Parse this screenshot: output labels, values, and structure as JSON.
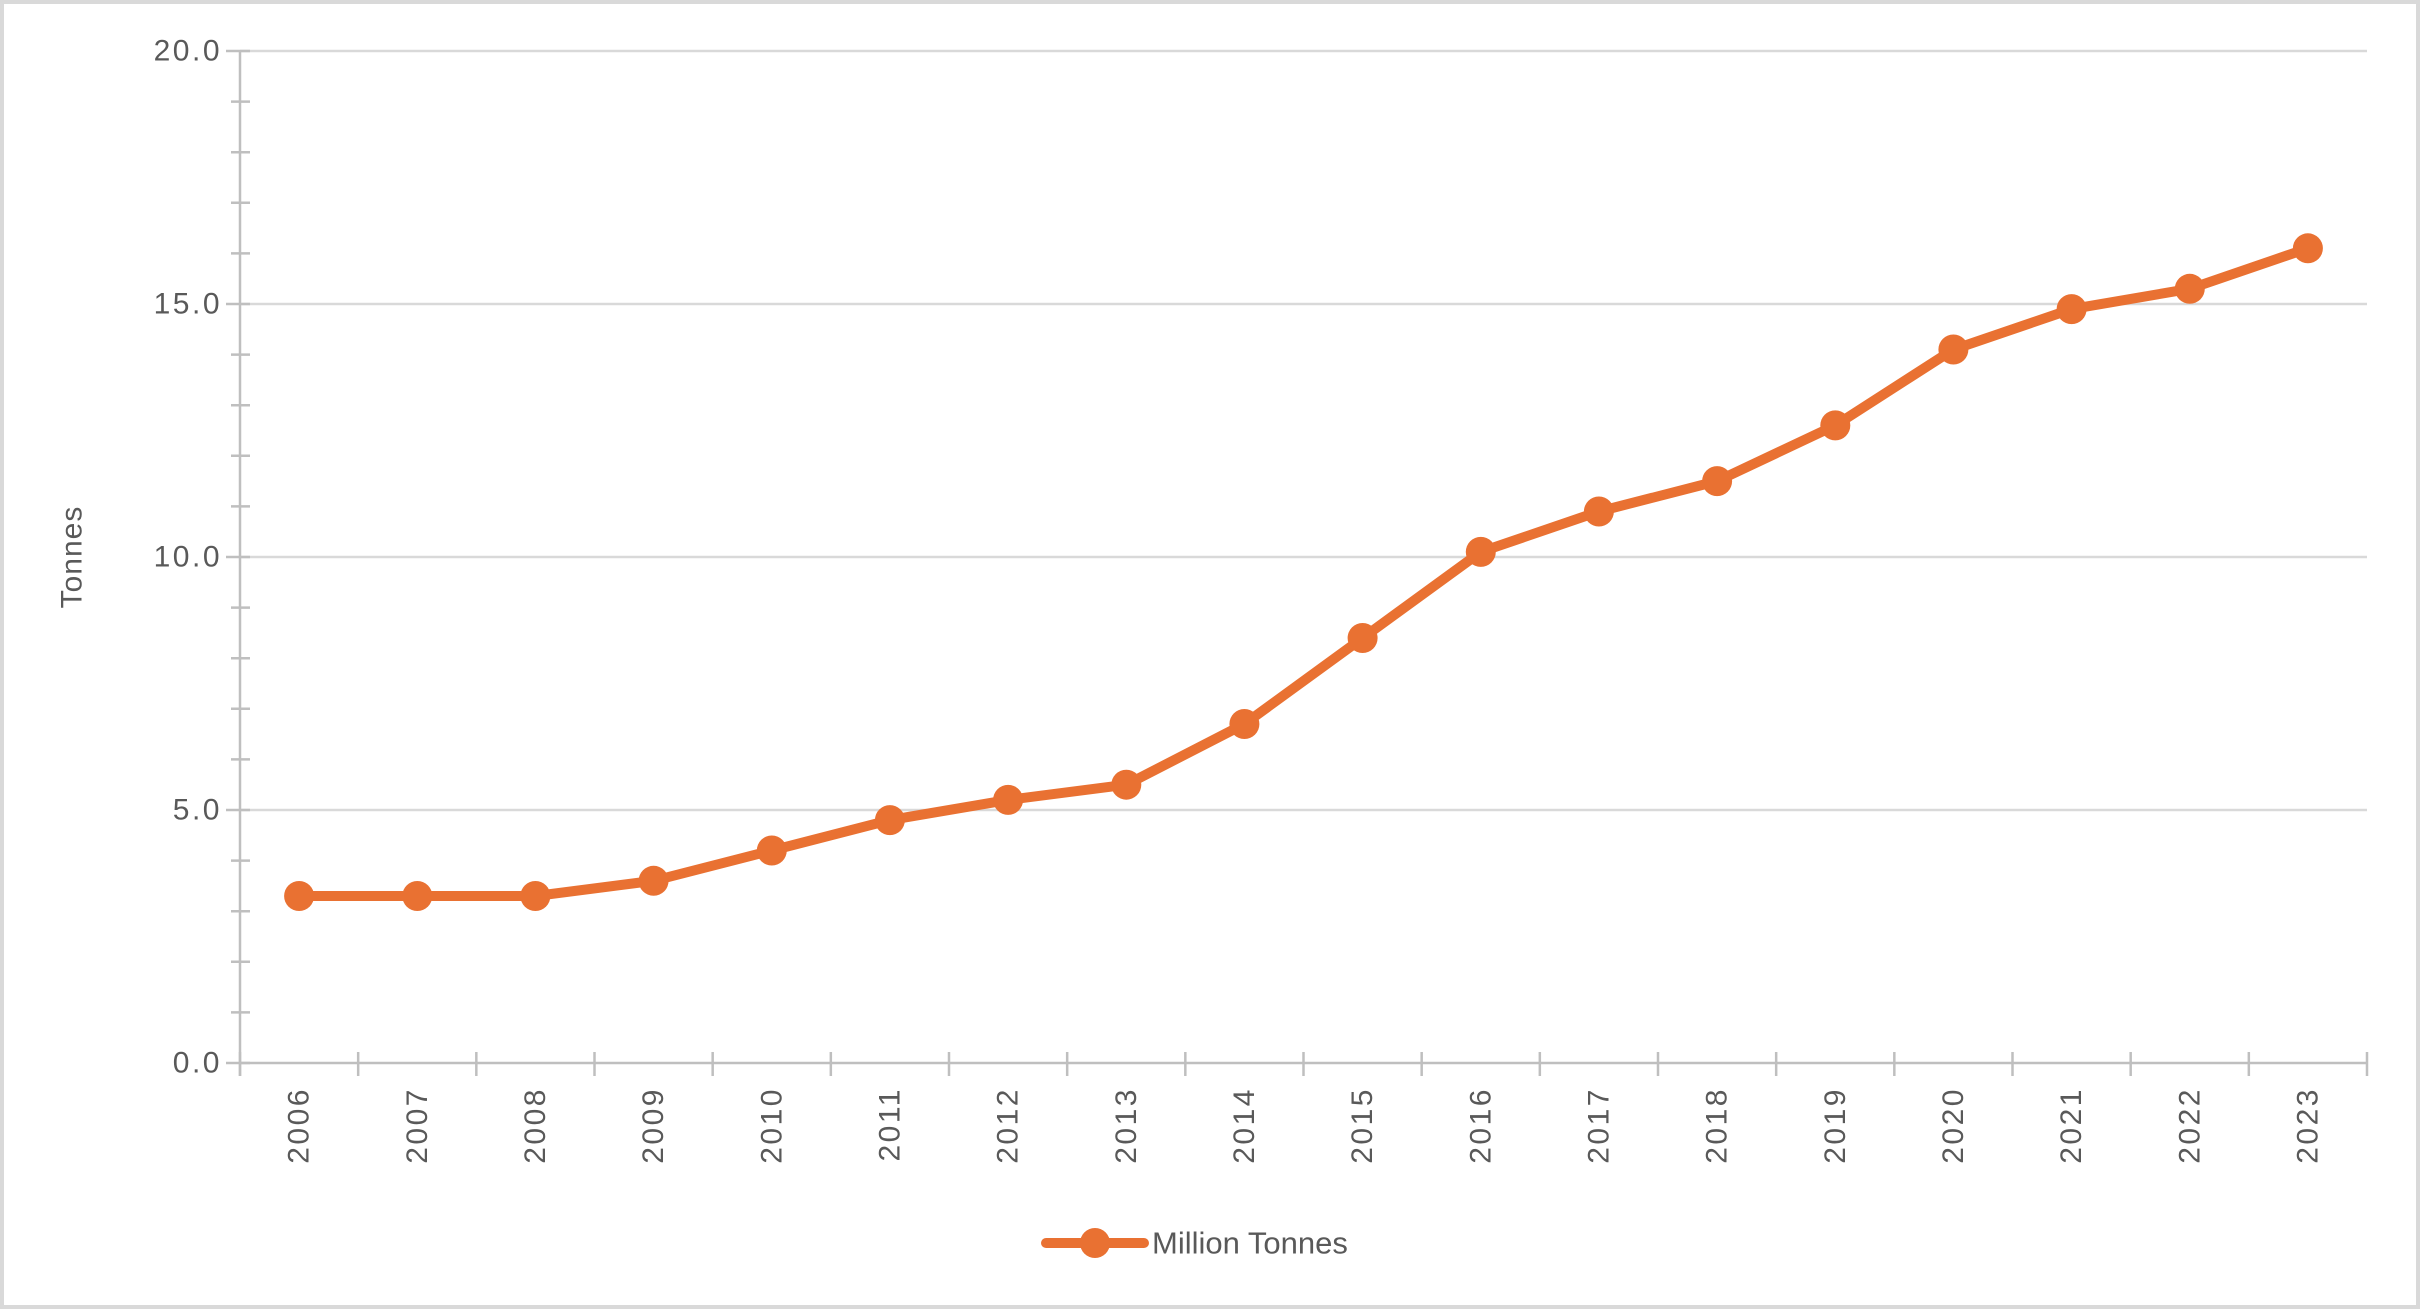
{
  "chart_data": {
    "type": "line",
    "title": "",
    "xlabel": "",
    "ylabel": "Tonnes",
    "categories": [
      "2006",
      "2007",
      "2008",
      "2009",
      "2010",
      "2011",
      "2012",
      "2013",
      "2014",
      "2015",
      "2016",
      "2017",
      "2018",
      "2019",
      "2020",
      "2021",
      "2022",
      "2023"
    ],
    "series": [
      {
        "name": "Million Tonnes",
        "values": [
          3.3,
          3.3,
          3.3,
          3.6,
          4.2,
          4.8,
          5.2,
          5.5,
          6.7,
          8.4,
          10.1,
          10.9,
          11.5,
          12.6,
          14.1,
          14.9,
          15.3,
          16.1
        ]
      }
    ],
    "ylim": [
      0,
      20
    ],
    "y_major_ticks": [
      "0.0",
      "5.0",
      "10.0",
      "15.0",
      "20.0"
    ],
    "y_major_interval": 5,
    "y_minor_interval": 1,
    "grid": "horizontal-major",
    "x_label_rotation_degrees": -90,
    "legend_position": "bottom-center",
    "marker": "circle",
    "colors": {
      "series": "#E97132",
      "label_text": "#595959",
      "gridline": "#D9D9D9",
      "axis_line": "#BFBFBF",
      "background": "#FFFFFF",
      "outer_border": "#D9D9D9"
    }
  }
}
